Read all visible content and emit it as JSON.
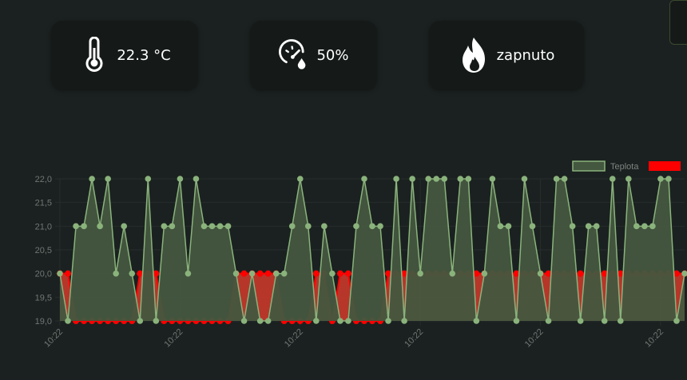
{
  "cards": {
    "temperature": {
      "value": "22.3 °C",
      "icon": "thermometer-icon"
    },
    "humidity": {
      "value": "50%",
      "icon": "gauge-droplet-icon"
    },
    "heating": {
      "value": "zapnuto",
      "icon": "flame-icon"
    }
  },
  "colors": {
    "background": "#1b2120",
    "card": "#151a19",
    "temperature_line": "#8ab37c",
    "temperature_fill": "#44573f",
    "heating_fill": "#ff0000",
    "heating_area": "#c8392b"
  },
  "chart_data": {
    "type": "area",
    "legend": [
      {
        "name": "Teplota",
        "color": "#8ab37c"
      },
      {
        "name": "",
        "color": "#ff0000"
      }
    ],
    "legend_position": "top-right",
    "ylim": [
      19.0,
      22.0
    ],
    "yticks": [
      "22,0",
      "21,5",
      "21,0",
      "20,5",
      "20,0",
      "19,5",
      "19,0"
    ],
    "ytick_values": [
      22.0,
      21.5,
      21.0,
      20.5,
      20.0,
      19.5,
      19.0
    ],
    "xtick_labels": [
      "10:22",
      "10:22",
      "10:22",
      "10:22",
      "10:22",
      "10:22"
    ],
    "xtick_indices": [
      0,
      15,
      30,
      45,
      60,
      75
    ],
    "grid": true,
    "series": [
      {
        "name": "Teplota",
        "values": [
          20,
          19,
          21,
          21,
          22,
          21,
          22,
          20,
          21,
          20,
          19,
          22,
          19,
          21,
          21,
          22,
          20,
          22,
          21,
          21,
          21,
          21,
          20,
          19,
          20,
          19,
          19,
          20,
          20,
          21,
          22,
          21,
          19,
          21,
          20,
          19,
          19,
          21,
          22,
          21,
          21,
          19,
          22,
          19,
          22,
          20,
          22,
          22,
          22,
          20,
          22,
          22,
          19,
          20,
          22,
          21,
          21,
          19,
          22,
          21,
          20,
          19,
          22,
          22,
          21,
          19,
          21,
          21,
          19,
          22,
          19,
          22,
          21,
          21,
          21,
          22,
          22,
          19,
          20
        ]
      },
      {
        "name": "",
        "values": [
          20,
          20,
          19,
          19,
          19,
          19,
          19,
          19,
          19,
          19,
          20,
          20,
          20,
          19,
          19,
          19,
          19,
          19,
          19,
          19,
          19,
          19,
          20,
          20,
          20,
          20,
          20,
          20,
          19,
          19,
          19,
          19,
          20,
          20,
          19,
          20,
          20,
          19,
          19,
          19,
          19,
          20,
          20,
          20,
          20,
          20,
          20,
          20,
          20,
          20,
          20,
          20,
          20,
          20,
          20,
          20,
          20,
          20,
          20,
          20,
          20,
          20,
          20,
          20,
          20,
          20,
          20,
          20,
          20,
          20,
          20,
          20,
          20,
          20,
          20,
          20,
          20,
          20,
          20
        ]
      }
    ]
  }
}
